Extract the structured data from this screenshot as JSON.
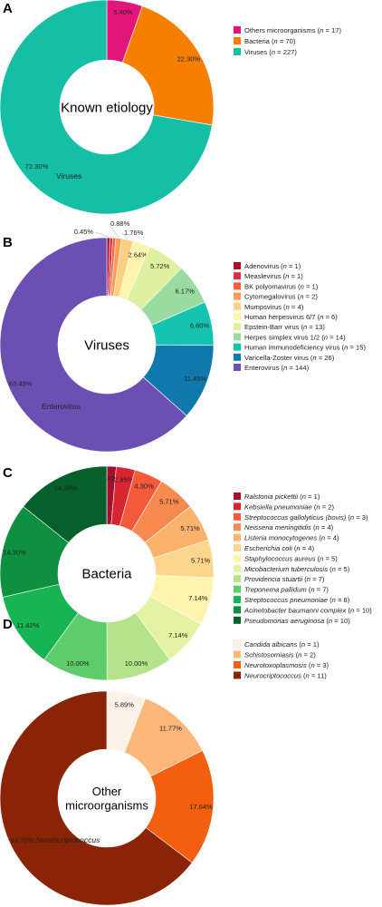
{
  "chart_data": [
    {
      "type": "pie",
      "panel": "A",
      "center_label": [
        "Known etiology"
      ],
      "slices": [
        {
          "name": "Others microorganisms",
          "n": "17",
          "pct": "5.40%",
          "value": 5.4,
          "color": "#e2157a"
        },
        {
          "name": "Bacteria",
          "n": "70",
          "pct": "22.30%",
          "value": 22.3,
          "color": "#f77f00"
        },
        {
          "name": "Viruses",
          "n": "227",
          "pct": "72.30%",
          "value": 72.3,
          "color": "#15bfa5"
        }
      ],
      "annotation": "Viruses"
    },
    {
      "type": "pie",
      "panel": "B",
      "center_label": [
        "Viruses"
      ],
      "slices": [
        {
          "name": "Adenovirus",
          "n": "1",
          "pct": "0.45%",
          "value": 0.45,
          "color": "#a50f2c"
        },
        {
          "name": "Measlevirus",
          "n": "1",
          "pct": "",
          "value": 0.44,
          "color": "#d62f47"
        },
        {
          "name": "BK polyomavirus",
          "n": "1",
          "pct": "",
          "value": 0.44,
          "color": "#f0603a"
        },
        {
          "name": "Cytomegalovirus",
          "n": "2",
          "pct": "0.88%",
          "value": 0.88,
          "color": "#fa9c58"
        },
        {
          "name": "Mumpsvirus",
          "n": "4",
          "pct": "1.76%",
          "value": 1.76,
          "color": "#fdcf82"
        },
        {
          "name": "Human herpesvirus 6/7",
          "n": "6",
          "pct": "2.64%",
          "value": 2.64,
          "color": "#fef4ac"
        },
        {
          "name": "Epstein-Barr virus",
          "n": "13",
          "pct": "5.72%",
          "value": 5.72,
          "color": "#dff1a0"
        },
        {
          "name": "Herpes simplex virus 1/2",
          "n": "14",
          "pct": "6.17%",
          "value": 6.17,
          "color": "#9adca0"
        },
        {
          "name": "Human immunodeficiency virus",
          "n": "15",
          "pct": "6.60%",
          "value": 6.6,
          "color": "#16c2b0"
        },
        {
          "name": "Varicella-Zoster virus",
          "n": "26",
          "pct": "11.45%",
          "value": 11.45,
          "color": "#0f79ae"
        },
        {
          "name": "Enterovirus",
          "n": "144",
          "pct": "63.43%",
          "value": 63.43,
          "color": "#6c4fb3"
        }
      ],
      "annotation": "Enterovirus"
    },
    {
      "type": "pie",
      "panel": "C",
      "center_label": [
        "Bacteria"
      ],
      "slices": [
        {
          "name": "Ralstonia pickettii",
          "n": "1",
          "pct": "1.42%",
          "value": 1.42,
          "color": "#a50f2c",
          "italic": true
        },
        {
          "name": "Kebsiella pneumoniae",
          "n": "2",
          "pct": "2.85%",
          "value": 2.85,
          "color": "#d9252f",
          "italic": true
        },
        {
          "name": "Streptococcus gallolyticus (bovis)",
          "n": "3",
          "pct": "4.30%",
          "value": 4.3,
          "color": "#f4593a",
          "italic": true
        },
        {
          "name": "Neisseria meningitidis",
          "n": "4",
          "pct": "5.71%",
          "value": 5.71,
          "color": "#f8894f",
          "italic": true
        },
        {
          "name": "Listeria monocytogenes",
          "n": "4",
          "pct": "5.71%",
          "value": 5.71,
          "color": "#fbb26a",
          "italic": true
        },
        {
          "name": "Escherichia coli",
          "n": "4",
          "pct": "5.71%",
          "value": 5.71,
          "color": "#fdd58d",
          "italic": true
        },
        {
          "name": "Staphylococcus aureus",
          "n": "5",
          "pct": "7.14%",
          "value": 7.14,
          "color": "#fef4ad",
          "italic": true
        },
        {
          "name": "Micobacterium tuberculosis",
          "n": "5",
          "pct": "7.14%",
          "value": 7.14,
          "color": "#e4f3a3",
          "italic": true
        },
        {
          "name": "Providencia stuartii",
          "n": "7",
          "pct": "10.00%",
          "value": 10.0,
          "color": "#b5e38a",
          "italic": true
        },
        {
          "name": "Treponema pallidum",
          "n": "7",
          "pct": "10.00%",
          "value": 10.0,
          "color": "#5ccd6a",
          "italic": true
        },
        {
          "name": "Streptococcus pneumoniae",
          "n": "8",
          "pct": "11.42%",
          "value": 11.42,
          "color": "#17b453",
          "italic": true
        },
        {
          "name": "Acinetobacter baumanni complex",
          "n": "10",
          "pct": "14.30%",
          "value": 14.3,
          "color": "#0e9040",
          "italic": true
        },
        {
          "name": "Pseudomonas aeruginosa",
          "n": "10",
          "pct": "14.30%",
          "value": 14.3,
          "color": "#06602c",
          "italic": true
        }
      ]
    },
    {
      "type": "pie",
      "panel": "D",
      "center_label": [
        "Other",
        "microorganisms"
      ],
      "slices": [
        {
          "name": "Candida albicans",
          "n": "1",
          "pct": "5.89%",
          "value": 5.89,
          "color": "#fdf2e8",
          "italic": true
        },
        {
          "name": "Schistosomiasis",
          "n": "2",
          "pct": "11.77%",
          "value": 11.77,
          "color": "#fdb77a",
          "italic": true
        },
        {
          "name": "Neurotoxoplasmosis",
          "n": "3",
          "pct": "17.64%",
          "value": 17.64,
          "color": "#f35f0f",
          "italic": true
        },
        {
          "name": "Neurocriptococcus",
          "n": "11",
          "pct": "64.70%",
          "value": 64.7,
          "color": "#8b2306",
          "italic": true
        }
      ],
      "annotation": "Neurocriptococcus",
      "annotation_italic": true
    }
  ]
}
